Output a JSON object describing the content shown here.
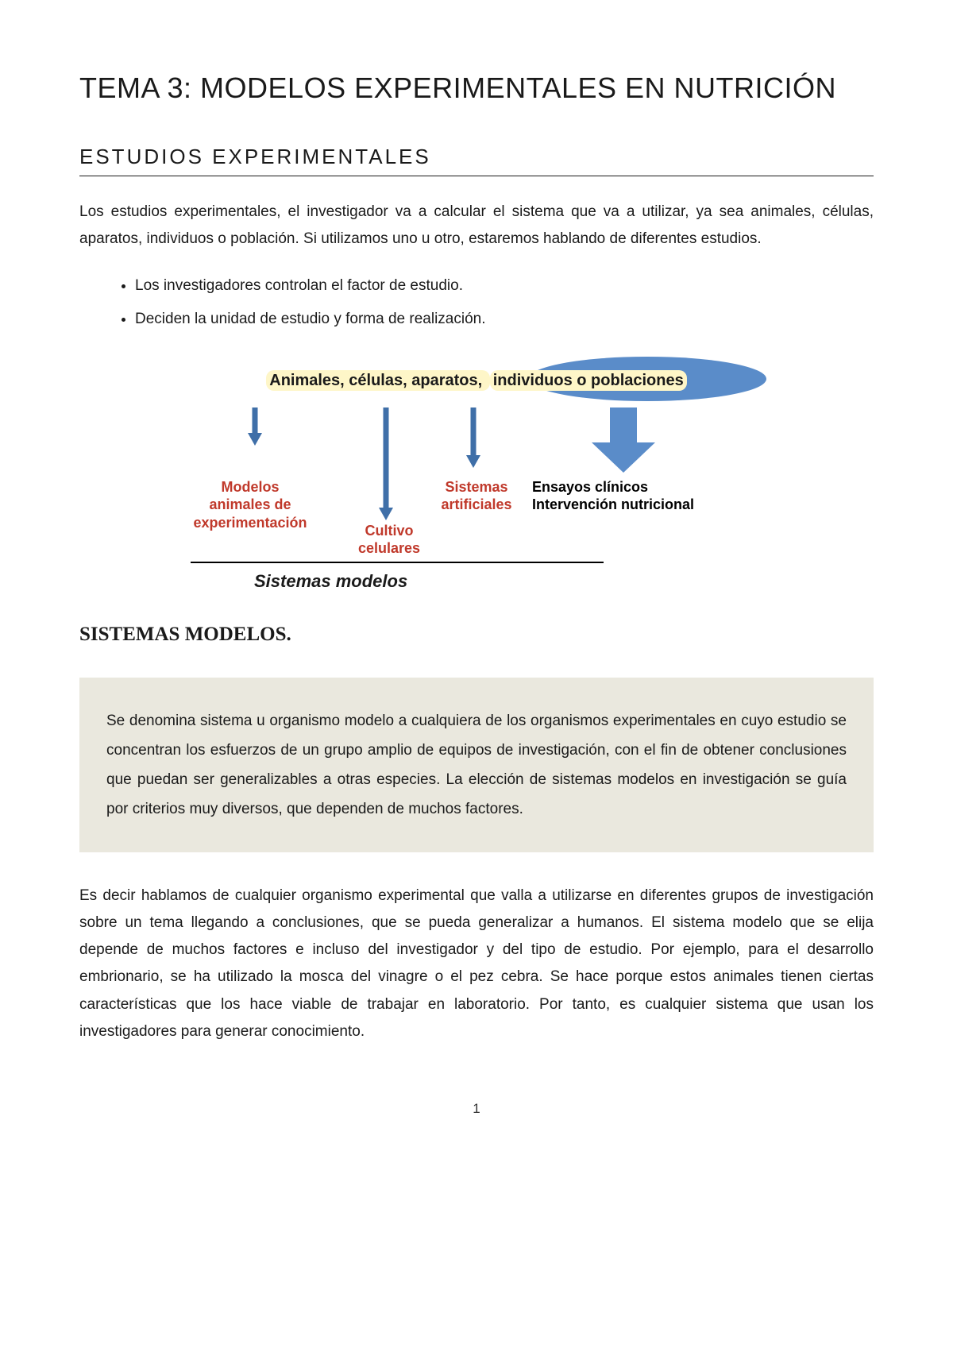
{
  "title": "TEMA 3: MODELOS EXPERIMENTALES EN NUTRICIÓN",
  "section1": {
    "heading": "ESTUDIOS EXPERIMENTALES",
    "intro": "Los estudios experimentales, el investigador va a calcular el sistema que va a utilizar, ya sea animales, células, aparatos, individuos o población. Si utilizamos uno u otro, estaremos hablando de diferentes estudios.",
    "bullets": [
      "Los investigadores controlan el factor de estudio.",
      "Deciden la unidad de estudio y forma de realización."
    ]
  },
  "diagram": {
    "top_prefix": "Animales, células, aparatos, ",
    "top_highlight": "individuos o poblaciones",
    "labels": {
      "modelos": "Modelos\nanimales de\nexperimentación",
      "cultivo": "Cultivo\ncelulares",
      "sistemas": "Sistemas\nartificiales",
      "ensayos": "Ensayos clínicos\nIntervención nutricional"
    },
    "bottom": "Sistemas modelos",
    "colors": {
      "arrow": "#3f6fa8",
      "red_text": "#c0392b",
      "ellipse": "#5a8cc9",
      "highlight": "#fef6c8"
    }
  },
  "section2": {
    "heading": "SISTEMAS MODELOS.",
    "box": "Se denomina sistema u organismo modelo a cualquiera de los organismos experimentales en cuyo estudio se concentran los esfuerzos de un grupo amplio de equipos de investigación, con el fin de obtener conclusiones que puedan ser generalizables a otras especies. La elección de sistemas modelos en investigación se guía por criterios muy diversos, que dependen de muchos factores.",
    "para": "Es decir hablamos de cualquier organismo experimental que valla a utilizarse en diferentes grupos de investigación sobre un tema llegando a conclusiones, que se pueda generalizar a humanos. El sistema modelo que se elija depende de muchos factores e incluso del investigador y del tipo de estudio. Por ejemplo, para el desarrollo embrionario, se ha utilizado la mosca del vinagre o el pez cebra. Se hace porque estos animales tienen ciertas características que los hace viable de trabajar en laboratorio. Por tanto, es cualquier sistema que usan los investigadores para generar conocimiento."
  },
  "page_number": "1"
}
